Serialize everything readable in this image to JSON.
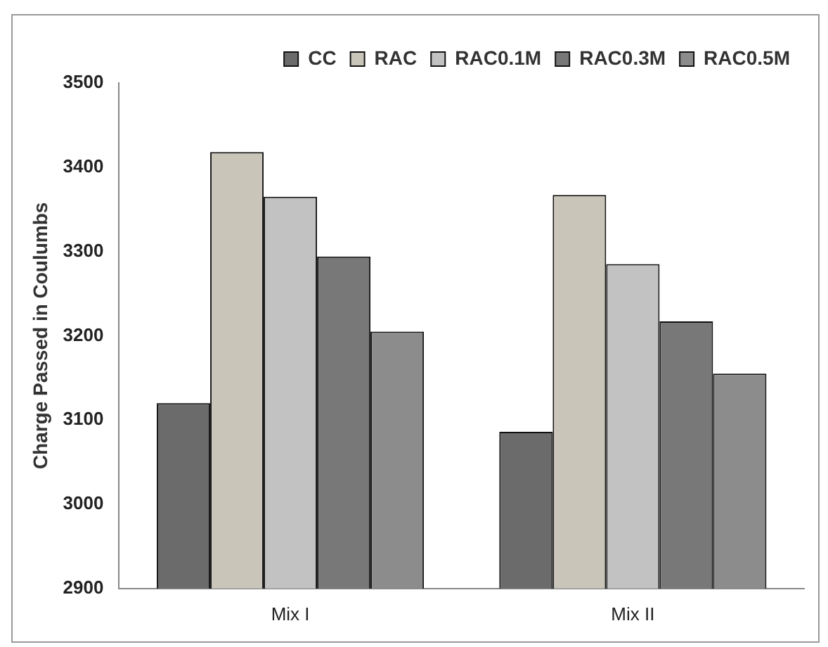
{
  "chart_data": {
    "type": "bar",
    "ylabel": "Charge Passed in Coulumbs",
    "categories": [
      "Mix I",
      "Mix II"
    ],
    "series": [
      {
        "name": "CC",
        "color": "#6b6b6b",
        "values": [
          3120,
          3086
        ]
      },
      {
        "name": "RAC",
        "color": "#c9c5b9",
        "values": [
          3418,
          3367
        ]
      },
      {
        "name": "RAC0.1M",
        "color": "#c2c2c2",
        "values": [
          3365,
          3285
        ]
      },
      {
        "name": "RAC0.3M",
        "color": "#787878",
        "values": [
          3294,
          3217
        ]
      },
      {
        "name": "RAC0.5M",
        "color": "#8c8c8c",
        "values": [
          3205,
          3155
        ]
      }
    ],
    "ylim": [
      2900,
      3500
    ],
    "yticks": [
      2900,
      3000,
      3100,
      3200,
      3300,
      3400,
      3500
    ],
    "grid": false,
    "legend": "top right"
  }
}
